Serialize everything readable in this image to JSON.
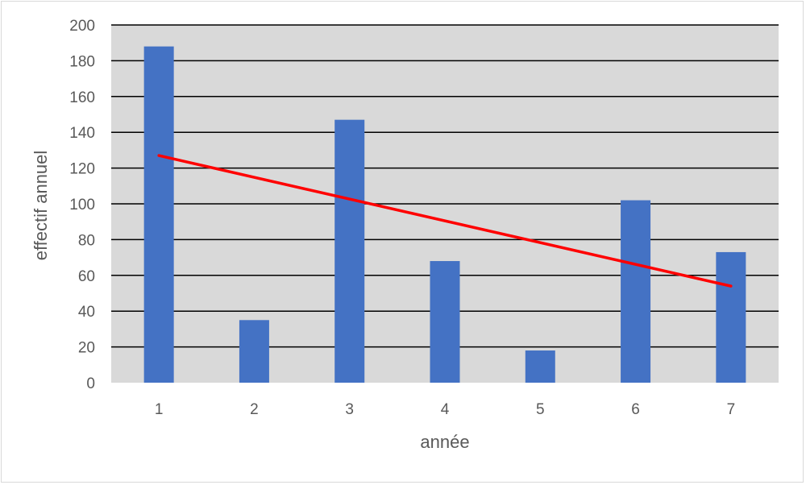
{
  "chart_data": {
    "type": "bar",
    "title": "",
    "xlabel": "année",
    "ylabel": "effectif annuel",
    "categories": [
      "1",
      "2",
      "3",
      "4",
      "5",
      "6",
      "7"
    ],
    "series": [
      {
        "type": "bar",
        "values": [
          188,
          35,
          147,
          68,
          18,
          102,
          73
        ]
      }
    ],
    "trendline": {
      "type": "linear",
      "start": {
        "x": "1",
        "y": 127
      },
      "end": {
        "x": "7",
        "y": 54
      }
    },
    "ylim": [
      0,
      200
    ],
    "yticks": [
      0,
      20,
      40,
      60,
      80,
      100,
      120,
      140,
      160,
      180,
      200
    ],
    "grid": true,
    "legend": "none",
    "colors": {
      "bar": "#4472c4",
      "trendline": "#ff0000",
      "plot_background": "#d9d9d9",
      "gridline": "#000000",
      "text": "#595959"
    }
  }
}
